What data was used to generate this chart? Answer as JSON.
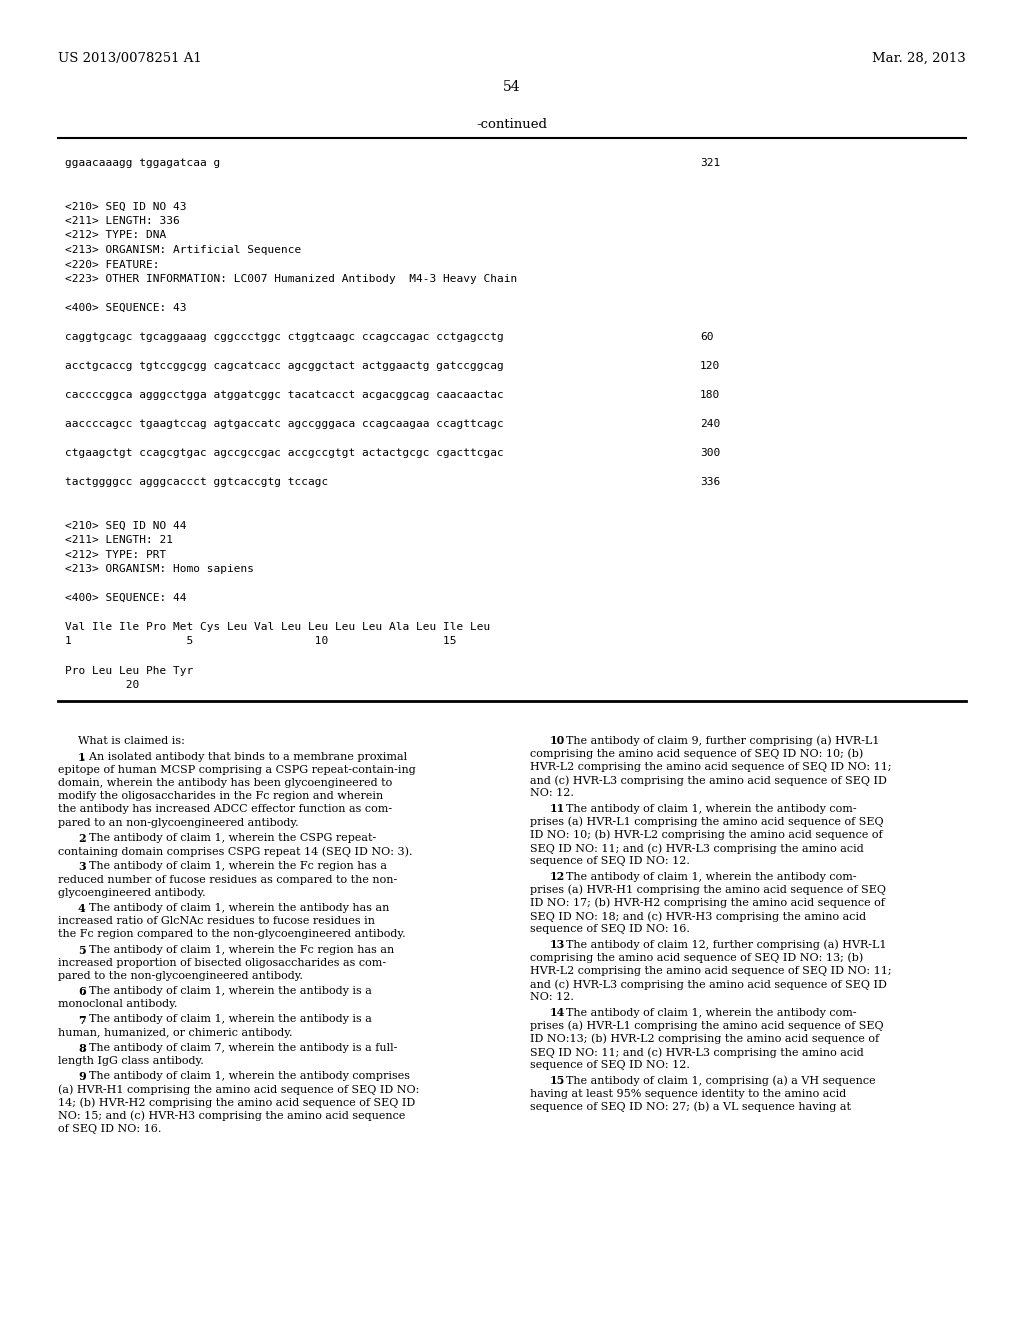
{
  "background_color": "#ffffff",
  "header_left": "US 2013/0078251 A1",
  "header_right": "Mar. 28, 2013",
  "page_number": "54",
  "continued_label": "-continued",
  "seq_lines": [
    {
      "text": "ggaacaaagg tggagatcaa g",
      "num": "321"
    },
    {
      "text": ""
    },
    {
      "text": ""
    },
    {
      "text": "<210> SEQ ID NO 43"
    },
    {
      "text": "<211> LENGTH: 336"
    },
    {
      "text": "<212> TYPE: DNA"
    },
    {
      "text": "<213> ORGANISM: Artificial Sequence"
    },
    {
      "text": "<220> FEATURE:"
    },
    {
      "text": "<223> OTHER INFORMATION: LC007 Humanized Antibody  M4-3 Heavy Chain"
    },
    {
      "text": ""
    },
    {
      "text": "<400> SEQUENCE: 43"
    },
    {
      "text": ""
    },
    {
      "text": "caggtgcagc tgcaggaaag cggccctggc ctggtcaagc ccagccagac cctgagcctg",
      "num": "60"
    },
    {
      "text": ""
    },
    {
      "text": "acctgcaccg tgtccggcgg cagcatcacc agcggctact actggaactg gatccggcag",
      "num": "120"
    },
    {
      "text": ""
    },
    {
      "text": "caccccggca agggcctgga atggatcggc tacatcacct acgacggcag caacaactac",
      "num": "180"
    },
    {
      "text": ""
    },
    {
      "text": "aaccccagcc tgaagtccag agtgaccatc agccgggaca ccagcaagaa ccagttcagc",
      "num": "240"
    },
    {
      "text": ""
    },
    {
      "text": "ctgaagctgt ccagcgtgac agccgccgac accgccgtgt actactgcgc cgacttcgac",
      "num": "300"
    },
    {
      "text": ""
    },
    {
      "text": "tactggggcc agggcaccct ggtcaccgtg tccagc",
      "num": "336"
    },
    {
      "text": ""
    },
    {
      "text": ""
    },
    {
      "text": "<210> SEQ ID NO 44"
    },
    {
      "text": "<211> LENGTH: 21"
    },
    {
      "text": "<212> TYPE: PRT"
    },
    {
      "text": "<213> ORGANISM: Homo sapiens"
    },
    {
      "text": ""
    },
    {
      "text": "<400> SEQUENCE: 44"
    },
    {
      "text": ""
    },
    {
      "text": "Val Ile Ile Pro Met Cys Leu Val Leu Leu Leu Leu Ala Leu Ile Leu"
    },
    {
      "text": "1                 5                  10                 15"
    },
    {
      "text": ""
    },
    {
      "text": "Pro Leu Leu Phe Tyr"
    },
    {
      "text": "         20"
    }
  ],
  "left_claims": [
    {
      "num": "",
      "text": "What is claimed is:",
      "italic": false,
      "intro": true
    },
    {
      "num": "1",
      "text": ". An isolated antibody that binds to a membrane proximal epitope of human MCSP comprising a CSPG repeat-contain-ing domain, wherein the antibody has been glycoengineered to modify the oligosaccharides in the Fc region and wherein the antibody has increased ADCC effector function as com-pared to an non-glycoengineered antibody."
    },
    {
      "num": "2",
      "text": ". The antibody of claim 1, wherein the CSPG repeat-containing domain comprises CSPG repeat 14 (SEQ ID NO: 3)."
    },
    {
      "num": "3",
      "text": ". The antibody of claim 1, wherein the Fc region has a reduced number of fucose residues as compared to the non-glycoengineered antibody."
    },
    {
      "num": "4",
      "text": ". The antibody of claim 1, wherein the antibody has an increased ratio of GlcNAc residues to fucose residues in the Fc region compared to the non-glycoengineered antibody."
    },
    {
      "num": "5",
      "text": ". The antibody of claim 1, wherein the Fc region has an increased proportion of bisected oligosaccharides as com-pared to the non-glycoengineered antibody."
    },
    {
      "num": "6",
      "text": ". The antibody of claim 1, wherein the antibody is a monoclonal antibody."
    },
    {
      "num": "7",
      "text": ". The antibody of claim 1, wherein the antibody is a human, humanized, or chimeric antibody."
    },
    {
      "num": "8",
      "text": ". The antibody of claim 7, wherein the antibody is a full-length IgG class antibody."
    },
    {
      "num": "9",
      "text": ". The antibody of claim 1, wherein the antibody comprises (a) HVR-H1 comprising the amino acid sequence of SEQ ID NO: 14; (b) HVR-H2 comprising the amino acid sequence of SEQ ID NO: 15; and (c) HVR-H3 comprising the amino acid sequence of SEQ ID NO: 16."
    }
  ],
  "right_claims": [
    {
      "num": "10",
      "text": ". The antibody of claim 9, further comprising (a) HVR-L1 comprising the amino acid sequence of SEQ ID NO: 10; (b) HVR-L2 comprising the amino acid sequence of SEQ ID NO: 11; and (c) HVR-L3 comprising the amino acid sequence of SEQ ID NO: 12."
    },
    {
      "num": "11",
      "text": ". The antibody of claim 1, wherein the antibody com-prises (a) HVR-L1 comprising the amino acid sequence of SEQ ID NO: 10; (b) HVR-L2 comprising the amino acid sequence of SEQ ID NO: 11; and (c) HVR-L3 comprising the amino acid sequence of SEQ ID NO: 12."
    },
    {
      "num": "12",
      "text": ". The antibody of claim 1, wherein the antibody com-prises (a) HVR-H1 comprising the amino acid sequence of SEQ ID NO: 17; (b) HVR-H2 comprising the amino acid sequence of SEQ ID NO: 18; and (c) HVR-H3 comprising the amino acid sequence of SEQ ID NO: 16."
    },
    {
      "num": "13",
      "text": ". The antibody of claim 12, further comprising (a) HVR-L1 comprising the amino acid sequence of SEQ ID NO: 13; (b) HVR-L2 comprising the amino acid sequence of SEQ ID NO: 11; and (c) HVR-L3 comprising the amino acid sequence of SEQ ID NO: 12."
    },
    {
      "num": "14",
      "text": ". The antibody of claim 1, wherein the antibody com-prises (a) HVR-L1 comprising the amino acid sequence of SEQ ID NO:13; (b) HVR-L2 comprising the amino acid sequence of SEQ ID NO: 11; and (c) HVR-L3 comprising the amino acid sequence of SEQ ID NO: 12."
    },
    {
      "num": "15",
      "text": ". The antibody of claim 1, comprising (a) a VH sequence having at least 95% sequence identity to the amino acid sequence of SEQ ID NO: 27; (b) a VL sequence having at"
    }
  ]
}
